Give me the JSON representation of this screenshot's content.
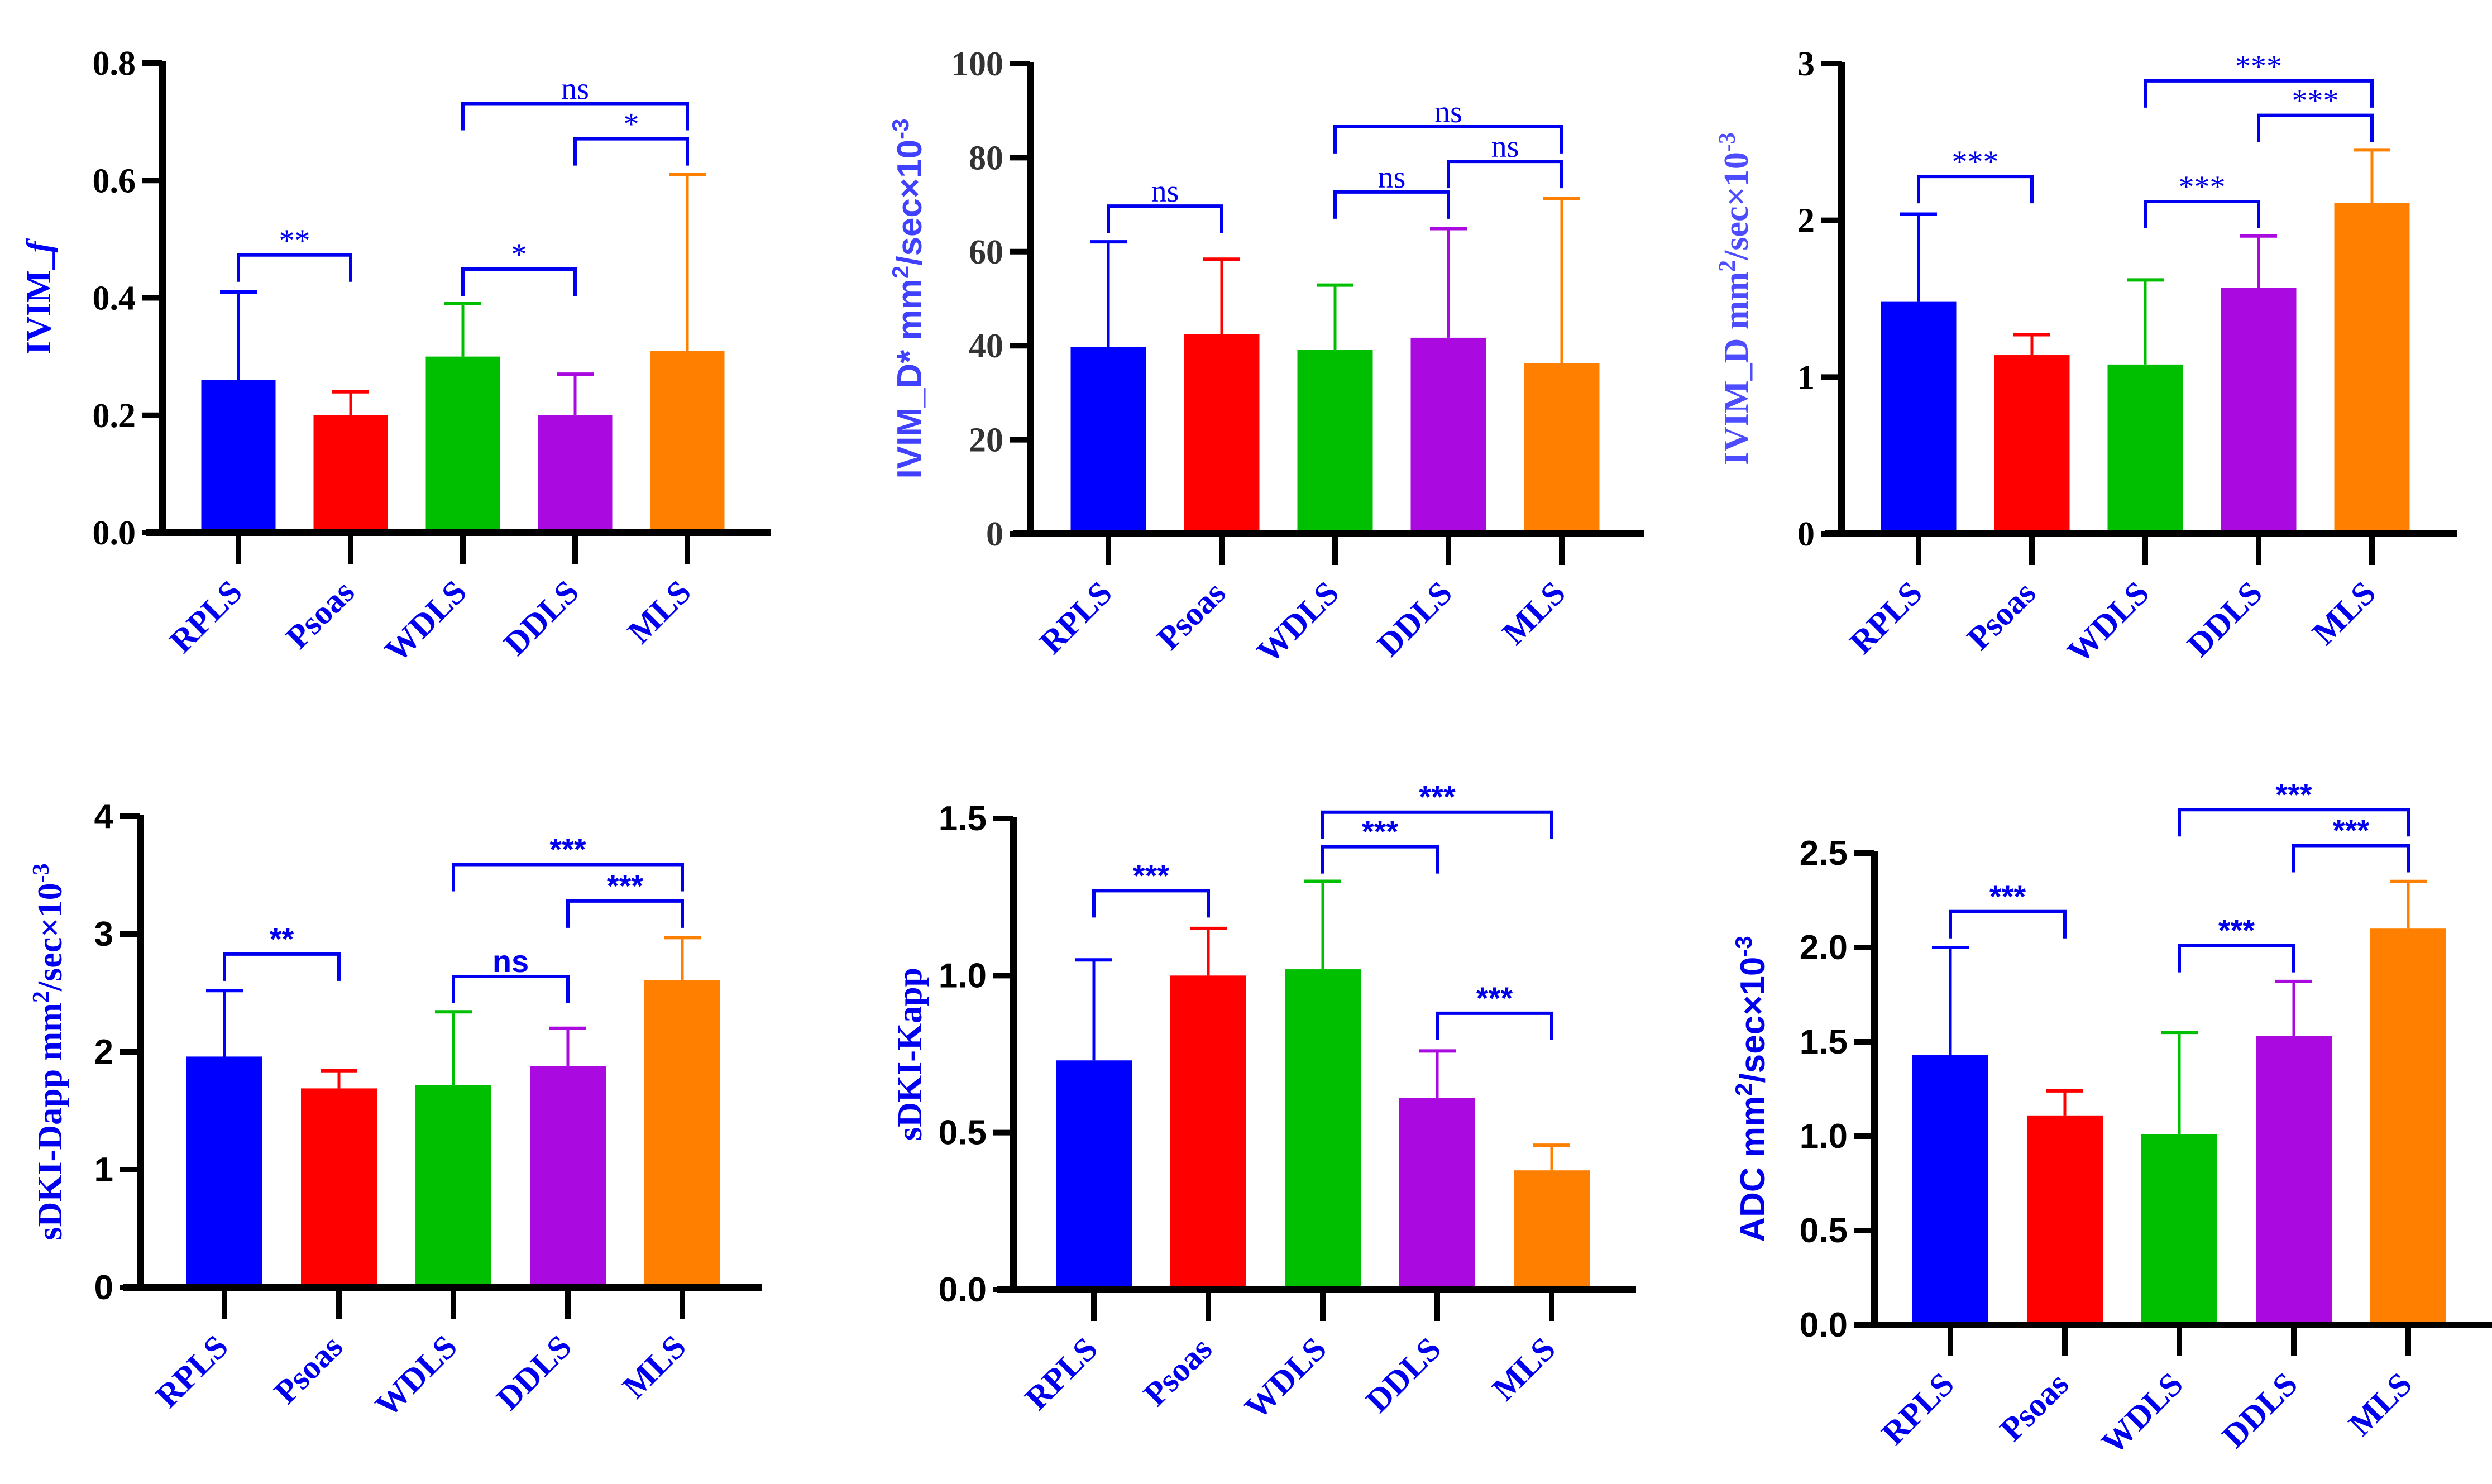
{
  "figure": {
    "colors": {
      "RPLS": "#0000ff",
      "Psoas": "#ff0000",
      "WDLS": "#00bf00",
      "DDLS": "#aa0ae0",
      "MLS": "#ff8000",
      "annotation": "#0000ee",
      "axis": "#000000"
    }
  },
  "chart_data": [
    {
      "type": "bar",
      "title": "",
      "xlabel": "",
      "ylabel": "IVIM_f",
      "ylabel_parts": [
        {
          "text": "IVIM_",
          "italic": false
        },
        {
          "text": "f",
          "italic": true
        }
      ],
      "ylabel_color": "#0000ff",
      "categories": [
        "RPLS",
        "Psoas",
        "WDLS",
        "DDLS",
        "MLS"
      ],
      "values": [
        0.26,
        0.2,
        0.3,
        0.2,
        0.31
      ],
      "error_upper": [
        0.41,
        0.24,
        0.39,
        0.27,
        0.61
      ],
      "ylim": [
        0,
        0.8
      ],
      "yticks": [
        0.0,
        0.2,
        0.4,
        0.6,
        0.8
      ],
      "ytick_labels": [
        "0.0",
        "0.2",
        "0.4",
        "0.6",
        "0.8"
      ],
      "grid": false,
      "comparisons": [
        {
          "from": "RPLS",
          "to": "Psoas",
          "label": "**",
          "level": 0.473
        },
        {
          "from": "WDLS",
          "to": "DDLS",
          "label": "*",
          "level": 0.449
        },
        {
          "from": "DDLS",
          "to": "MLS",
          "label": "*",
          "level": 0.671
        },
        {
          "from": "WDLS",
          "to": "MLS",
          "label": "ns",
          "level": 0.731
        }
      ]
    },
    {
      "type": "bar",
      "title": "",
      "xlabel": "",
      "ylabel": "IVIM_D* mm2/sec×10-3",
      "ylabel_parts": [
        {
          "text": "IVIM_D* mm"
        },
        {
          "text": "2",
          "sup": true
        },
        {
          "text": "/sec×10"
        },
        {
          "text": "-3",
          "sup": true
        }
      ],
      "ylabel_color": "#4040ff",
      "categories": [
        "RPLS",
        "Psoas",
        "WDLS",
        "DDLS",
        "MLS"
      ],
      "values": [
        39.7,
        42.5,
        39.1,
        41.7,
        36.3
      ],
      "error_upper": [
        62.1,
        58.4,
        52.9,
        64.9,
        71.3
      ],
      "ylim": [
        0,
        100
      ],
      "yticks": [
        0,
        20,
        40,
        60,
        80,
        100
      ],
      "ytick_labels": [
        "0",
        "20",
        "40",
        "60",
        "80",
        "100"
      ],
      "grid": false,
      "comparisons": [
        {
          "from": "RPLS",
          "to": "Psoas",
          "label": "ns",
          "level": 69.7
        },
        {
          "from": "WDLS",
          "to": "DDLS",
          "label": "ns",
          "level": 72.7
        },
        {
          "from": "DDLS",
          "to": "MLS",
          "label": "ns",
          "level": 79.2
        },
        {
          "from": "WDLS",
          "to": "MLS",
          "label": "ns",
          "level": 86.6
        }
      ]
    },
    {
      "type": "bar",
      "title": "",
      "xlabel": "",
      "ylabel": "IVIM_D mm2/sec×10-3",
      "ylabel_parts": [
        {
          "text": "IVIM_D mm"
        },
        {
          "text": "2",
          "sup": true
        },
        {
          "text": "/sec×10"
        },
        {
          "text": "-3",
          "sup": true
        }
      ],
      "ylabel_color": "#4d4dff",
      "categories": [
        "RPLS",
        "Psoas",
        "WDLS",
        "DDLS",
        "MLS"
      ],
      "values": [
        1.48,
        1.14,
        1.08,
        1.57,
        2.11
      ],
      "error_upper": [
        2.04,
        1.27,
        1.62,
        1.9,
        2.45
      ],
      "ylim": [
        0,
        3
      ],
      "yticks": [
        0,
        1,
        2,
        3
      ],
      "ytick_labels": [
        "0",
        "1",
        "2",
        "3"
      ],
      "grid": false,
      "comparisons": [
        {
          "from": "RPLS",
          "to": "Psoas",
          "label": "***",
          "level": 2.28
        },
        {
          "from": "WDLS",
          "to": "DDLS",
          "label": "***",
          "level": 2.12
        },
        {
          "from": "DDLS",
          "to": "MLS",
          "label": "***",
          "level": 2.67
        },
        {
          "from": "WDLS",
          "to": "MLS",
          "label": "***",
          "level": 2.89
        }
      ]
    },
    {
      "type": "bar",
      "title": "",
      "xlabel": "",
      "ylabel": "sDKI-Dapp mm2/sec×10-3",
      "ylabel_parts": [
        {
          "text": "sDKI-Dapp mm"
        },
        {
          "text": "2",
          "sup": true
        },
        {
          "text": "/sec×10"
        },
        {
          "text": "-3",
          "sup": true
        }
      ],
      "ylabel_color": "#0000ee",
      "categories": [
        "RPLS",
        "Psoas",
        "WDLS",
        "DDLS",
        "MLS"
      ],
      "values": [
        1.96,
        1.69,
        1.72,
        1.88,
        2.61
      ],
      "error_upper": [
        2.52,
        1.84,
        2.34,
        2.2,
        2.97
      ],
      "ylim": [
        0,
        4
      ],
      "yticks": [
        0,
        1,
        2,
        3,
        4
      ],
      "ytick_labels": [
        "0",
        "1",
        "2",
        "3",
        "4"
      ],
      "grid": false,
      "comparisons": [
        {
          "from": "RPLS",
          "to": "Psoas",
          "label": "**",
          "level": 2.83
        },
        {
          "from": "WDLS",
          "to": "DDLS",
          "label": "ns",
          "level": 2.64
        },
        {
          "from": "DDLS",
          "to": "MLS",
          "label": "***",
          "level": 3.28
        },
        {
          "from": "WDLS",
          "to": "MLS",
          "label": "***",
          "level": 3.59
        }
      ]
    },
    {
      "type": "bar",
      "title": "",
      "xlabel": "",
      "ylabel": "sDKI-Kapp",
      "ylabel_parts": [
        {
          "text": "sDKI-Kapp"
        }
      ],
      "ylabel_color": "#0000ee",
      "categories": [
        "RPLS",
        "Psoas",
        "WDLS",
        "DDLS",
        "MLS"
      ],
      "values": [
        0.73,
        1.0,
        1.02,
        0.61,
        0.38
      ],
      "error_upper": [
        1.05,
        1.15,
        1.3,
        0.76,
        0.46
      ],
      "ylim": [
        0,
        1.5
      ],
      "yticks": [
        0.0,
        0.5,
        1.0,
        1.5
      ],
      "ytick_labels": [
        "0.0",
        "0.5",
        "1.0",
        "1.5"
      ],
      "grid": false,
      "comparisons": [
        {
          "from": "RPLS",
          "to": "Psoas",
          "label": "***",
          "level": 1.27
        },
        {
          "from": "WDLS",
          "to": "DDLS",
          "label": "***",
          "level": 1.41
        },
        {
          "from": "WDLS",
          "to": "MLS",
          "label": "***",
          "level": 1.52
        },
        {
          "from": "DDLS",
          "to": "MLS",
          "label": "***",
          "level": 0.88
        }
      ]
    },
    {
      "type": "bar",
      "title": "",
      "xlabel": "",
      "ylabel": "ADC mm2/sec×10-3",
      "ylabel_parts": [
        {
          "text": "ADC mm"
        },
        {
          "text": "2",
          "sup": true
        },
        {
          "text": "/sec×10"
        },
        {
          "text": "-3",
          "sup": true
        }
      ],
      "ylabel_color": "#0000ee",
      "categories": [
        "RPLS",
        "Psoas",
        "WDLS",
        "DDLS",
        "MLS"
      ],
      "values": [
        1.43,
        1.11,
        1.01,
        1.53,
        2.1
      ],
      "error_upper": [
        2.0,
        1.24,
        1.55,
        1.82,
        2.35
      ],
      "ylim": [
        0,
        2.5
      ],
      "yticks": [
        0.0,
        0.5,
        1.0,
        1.5,
        2.0,
        2.5
      ],
      "ytick_labels": [
        "0.0",
        "0.5",
        "1.0",
        "1.5",
        "2.0",
        "2.5"
      ],
      "grid": false,
      "comparisons": [
        {
          "from": "RPLS",
          "to": "Psoas",
          "label": "***",
          "level": 2.19
        },
        {
          "from": "WDLS",
          "to": "DDLS",
          "label": "***",
          "level": 2.01
        },
        {
          "from": "DDLS",
          "to": "MLS",
          "label": "***",
          "level": 2.54
        },
        {
          "from": "WDLS",
          "to": "MLS",
          "label": "***",
          "level": 2.73
        }
      ]
    }
  ]
}
